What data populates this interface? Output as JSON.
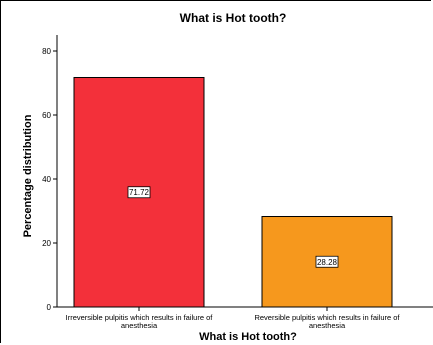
{
  "chart_data": {
    "type": "bar",
    "title": "What is Hot tooth?",
    "xlabel": "What is Hot tooth?",
    "ylabel": "Percentage distribution",
    "ylim": [
      0,
      85
    ],
    "yticks": [
      "0",
      "20",
      "40",
      "60",
      "80"
    ],
    "categories": [
      [
        "Irreversible pulpitis which results in failure of",
        "anesthesia"
      ],
      [
        "Reversible pulpitis which results in failure of",
        "anesthesia"
      ]
    ],
    "values": [
      71.72,
      28.28
    ],
    "data_labels": [
      "71.72",
      "28.28"
    ],
    "colors": [
      "#f3303a",
      "#f6981d"
    ],
    "grid": false,
    "legend": "none"
  }
}
